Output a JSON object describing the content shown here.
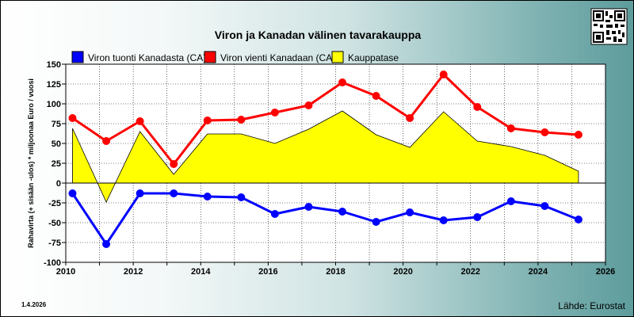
{
  "chart_data": {
    "type": "line",
    "title": "Viron ja Kanadan välinen tavarakauppa",
    "ylabel": "Rahavirta (+ sisään -ulos)  * miljoonaa Euro / vuosi",
    "xlabel": "",
    "xlim": [
      2010,
      2026
    ],
    "ylim": [
      -100,
      150
    ],
    "x_ticks": [
      "2010",
      "2012",
      "2014",
      "2016",
      "2018",
      "2020",
      "2022",
      "2024",
      "2026"
    ],
    "y_ticks": [
      "150",
      "125",
      "100",
      "75",
      "50",
      "25",
      "0",
      "-25",
      "-50",
      "-75",
      "-100"
    ],
    "grid": true,
    "legend_position": "top",
    "x": [
      2010.2,
      2011.2,
      2012.2,
      2013.2,
      2014.2,
      2015.2,
      2016.2,
      2017.2,
      2018.2,
      2019.2,
      2020.2,
      2021.2,
      2022.2,
      2023.2,
      2024.2,
      2025.2
    ],
    "series": [
      {
        "name": "Viron tuonti Kanadasta (CA)",
        "type": "line",
        "color": "#0000ff",
        "values": [
          -13,
          -77,
          -13,
          -13,
          -17,
          -18,
          -39,
          -30,
          -36,
          -49,
          -37,
          -47,
          -43,
          -23,
          -29,
          -46
        ]
      },
      {
        "name": "Viron vienti Kanadaan (CA)",
        "type": "line",
        "color": "#ff0000",
        "values": [
          82,
          53,
          78,
          24,
          79,
          80,
          89,
          98,
          127,
          110,
          82,
          137,
          96,
          69,
          64,
          61
        ]
      },
      {
        "name": "Kauppatase",
        "type": "area",
        "color": "#ffff00",
        "values": [
          69,
          -24,
          65,
          11,
          62,
          62,
          50,
          68,
          91,
          61,
          45,
          90,
          53,
          46,
          35,
          15
        ]
      }
    ]
  },
  "footer": {
    "date": "1.4.2026",
    "source": "Lähde: Eurostat"
  }
}
